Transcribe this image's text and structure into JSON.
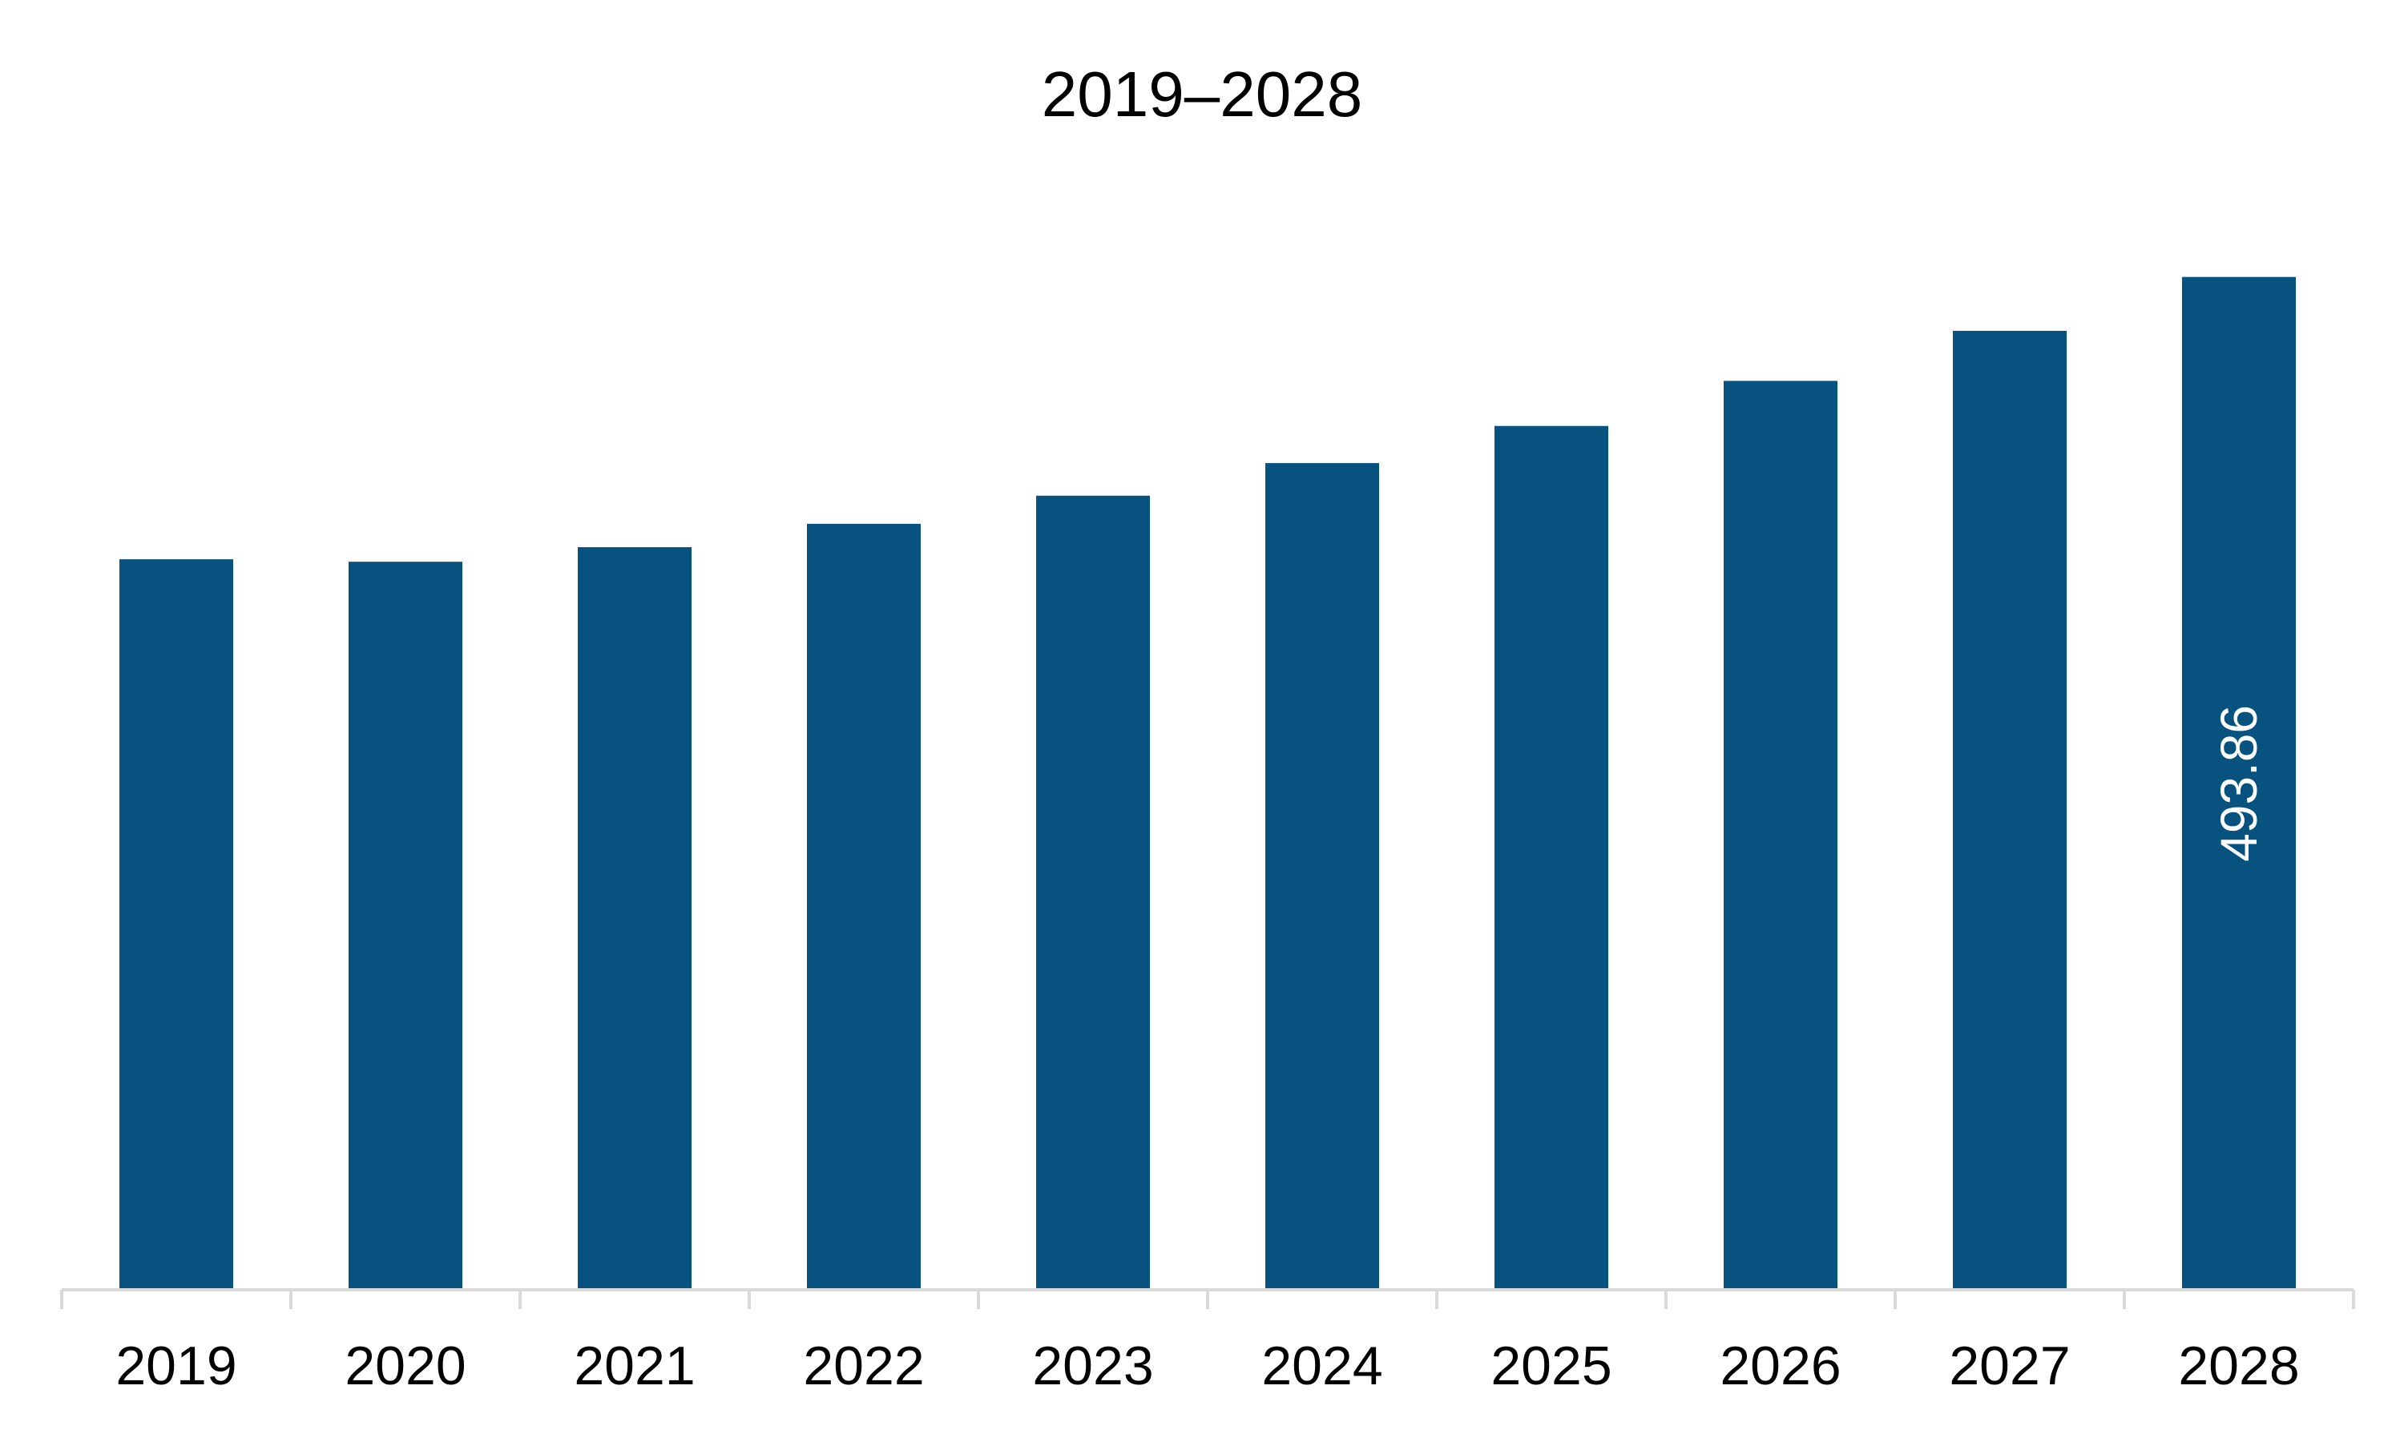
{
  "chart_data": {
    "type": "bar",
    "title": "2019–2028",
    "categories": [
      "2019",
      "2020",
      "2021",
      "2022",
      "2023",
      "2024",
      "2025",
      "2026",
      "2027",
      "2028"
    ],
    "values": [
      356.2,
      355.0,
      362.1,
      373.5,
      387.2,
      403.1,
      421.2,
      443.2,
      467.6,
      493.86
    ],
    "value_labels": [
      "",
      "",
      "",
      "",
      "",
      "",
      "",
      "",
      "",
      "493.86"
    ],
    "ylim": [
      0,
      500
    ],
    "grid": false,
    "legend": "none",
    "colors": {
      "bar": "#07527F",
      "axis": "#D9D9D9",
      "text": "#000000",
      "value_label": "#FFFFFF"
    }
  }
}
